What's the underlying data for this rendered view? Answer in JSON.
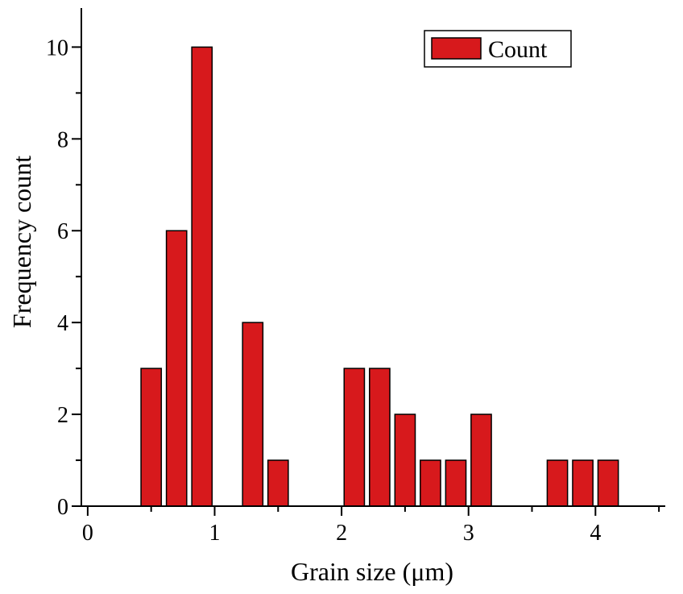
{
  "chart_data": {
    "type": "bar",
    "xlabel": "Grain size (μm)",
    "ylabel": "Frequency count",
    "xlim": [
      -0.05,
      4.55
    ],
    "ylim": [
      0,
      10.85
    ],
    "x_ticks": [
      0,
      1,
      2,
      3,
      4
    ],
    "y_ticks": [
      0,
      2,
      4,
      6,
      8,
      10
    ],
    "x_tick_labels": [
      "0",
      "1",
      "2",
      "3",
      "4"
    ],
    "y_tick_labels": [
      "0",
      "2",
      "4",
      "6",
      "8",
      "10"
    ],
    "bar_width": 0.16,
    "bar_color": "#d7191c",
    "grid": false,
    "legend": {
      "position": "top-right",
      "entries": [
        "Count"
      ]
    },
    "series": [
      {
        "name": "Count",
        "x": [
          0.5,
          0.7,
          0.9,
          1.3,
          1.5,
          2.1,
          2.3,
          2.5,
          2.7,
          2.9,
          3.1,
          3.7,
          3.9,
          4.1
        ],
        "values": [
          3,
          6,
          10,
          4,
          1,
          3,
          3,
          2,
          1,
          1,
          2,
          1,
          1,
          1
        ]
      }
    ]
  }
}
